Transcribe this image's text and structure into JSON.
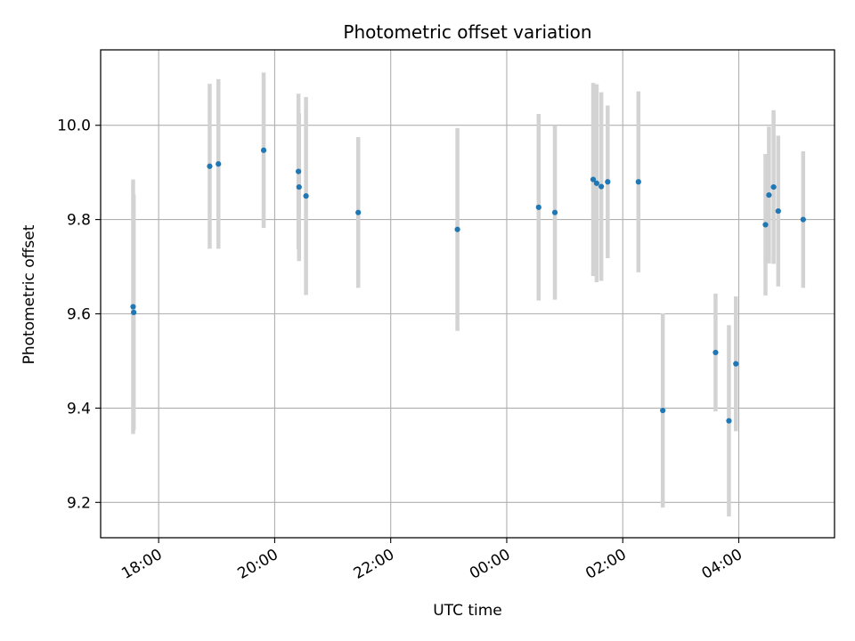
{
  "chart_data": {
    "type": "scatter",
    "title": "Photometric offset variation",
    "xlabel": "UTC time",
    "ylabel": "Photometric offset",
    "x_unit": "hours since 00:00 UTC (negative = previous day)",
    "xlim": [
      -7.0,
      5.65
    ],
    "ylim": [
      9.125,
      10.16
    ],
    "x_ticks": [
      {
        "value": -6,
        "label": "18:00"
      },
      {
        "value": -4,
        "label": "20:00"
      },
      {
        "value": -2,
        "label": "22:00"
      },
      {
        "value": 0,
        "label": "00:00"
      },
      {
        "value": 2,
        "label": "02:00"
      },
      {
        "value": 4,
        "label": "04:00"
      }
    ],
    "y_ticks": [
      {
        "value": 9.2,
        "label": "9.2"
      },
      {
        "value": 9.4,
        "label": "9.4"
      },
      {
        "value": 9.6,
        "label": "9.6"
      },
      {
        "value": 9.8,
        "label": "9.8"
      },
      {
        "value": 10.0,
        "label": "10.0"
      }
    ],
    "grid": true,
    "colors": {
      "points": "#1f77b4",
      "errorbars": "#d3d3d3",
      "grid": "#b0b0b0",
      "axes": "#000000"
    },
    "series": [
      {
        "points": [
          {
            "x": -6.44,
            "y": 9.615,
            "yerr": 0.27
          },
          {
            "x": -6.43,
            "y": 9.603,
            "yerr": 0.25
          },
          {
            "x": -5.12,
            "y": 9.913,
            "yerr": 0.175
          },
          {
            "x": -4.97,
            "y": 9.918,
            "yerr": 0.18
          },
          {
            "x": -4.19,
            "y": 9.947,
            "yerr": 0.165
          },
          {
            "x": -3.59,
            "y": 9.902,
            "yerr": 0.165
          },
          {
            "x": -3.58,
            "y": 9.869,
            "yerr": 0.157
          },
          {
            "x": -3.46,
            "y": 9.85,
            "yerr": 0.21
          },
          {
            "x": -2.56,
            "y": 9.815,
            "yerr": 0.16
          },
          {
            "x": -0.85,
            "y": 9.779,
            "yerr": 0.215
          },
          {
            "x": 0.55,
            "y": 9.826,
            "yerr": 0.198
          },
          {
            "x": 0.83,
            "y": 9.815,
            "yerr": 0.185
          },
          {
            "x": 1.49,
            "y": 9.885,
            "yerr": 0.205
          },
          {
            "x": 1.55,
            "y": 9.877,
            "yerr": 0.21
          },
          {
            "x": 1.63,
            "y": 9.87,
            "yerr": 0.2
          },
          {
            "x": 1.74,
            "y": 9.88,
            "yerr": 0.162
          },
          {
            "x": 2.27,
            "y": 9.88,
            "yerr": 0.192
          },
          {
            "x": 2.69,
            "y": 9.395,
            "yerr": 0.206
          },
          {
            "x": 3.6,
            "y": 9.518,
            "yerr": 0.125
          },
          {
            "x": 3.83,
            "y": 9.373,
            "yerr": 0.203
          },
          {
            "x": 3.95,
            "y": 9.494,
            "yerr": 0.143
          },
          {
            "x": 4.46,
            "y": 9.789,
            "yerr": 0.15
          },
          {
            "x": 4.52,
            "y": 9.852,
            "yerr": 0.145
          },
          {
            "x": 4.6,
            "y": 9.869,
            "yerr": 0.163
          },
          {
            "x": 4.68,
            "y": 9.818,
            "yerr": 0.16
          },
          {
            "x": 5.11,
            "y": 9.8,
            "yerr": 0.145
          }
        ]
      }
    ]
  }
}
